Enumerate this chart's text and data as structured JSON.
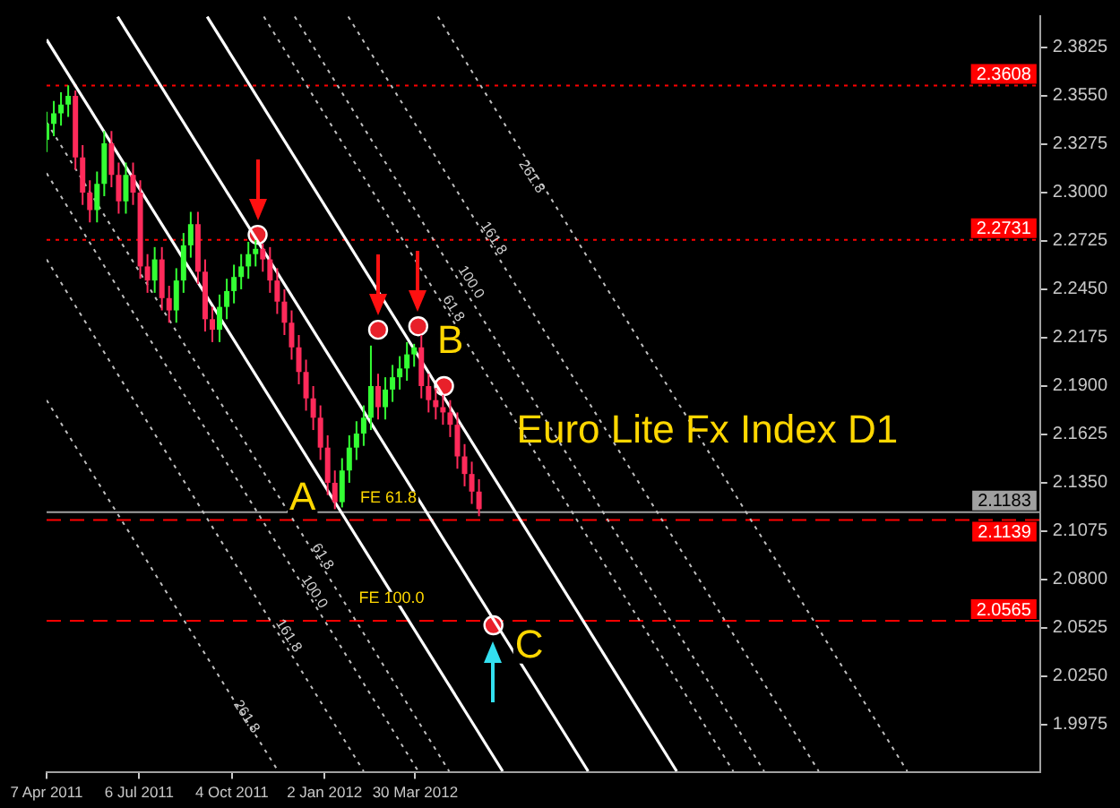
{
  "chart_data": {
    "type": "candlestick",
    "title": "Euro Lite Fx Index D1",
    "xlim": [
      "2011-04-07",
      "2013-11-27"
    ],
    "xticks": [
      {
        "value": "2011-04-07",
        "label": "7 Apr 2011"
      },
      {
        "value": "2011-07-06",
        "label": "6 Jul 2011"
      },
      {
        "value": "2011-10-04",
        "label": "4 Oct 2011"
      },
      {
        "value": "2012-01-02",
        "label": "2 Jan 2012"
      },
      {
        "value": "2012-03-30",
        "label": "30 Mar 2012"
      }
    ],
    "ylim": [
      1.9707,
      2.4003
    ],
    "yticks": [
      2.3825,
      {
        "value": 2.355,
        "label": "2.3550"
      },
      2.3275,
      {
        "value": 2.3,
        "label": "2.3000"
      },
      2.2725,
      {
        "value": 2.245,
        "label": "2.2450"
      },
      2.2175,
      {
        "value": 2.19,
        "label": "2.1900"
      },
      2.1625,
      {
        "value": 2.135,
        "label": "2.1350"
      },
      2.1075,
      {
        "value": 2.08,
        "label": "2.0800"
      },
      2.0525,
      {
        "value": 2.025,
        "label": "2.0250"
      },
      1.9975
    ],
    "ref_lines": [
      {
        "axis": "y",
        "value": 2.3608,
        "label": "2.3608",
        "color": "#ff0000",
        "line_style": "dotted"
      },
      {
        "axis": "y",
        "value": 2.2731,
        "label": "2.2731",
        "color": "#ff0000",
        "line_style": "dotted"
      },
      {
        "axis": "y",
        "value": 2.1183,
        "label": "2.1183",
        "color": "#a0a0a0",
        "line_style": "solid"
      },
      {
        "axis": "y",
        "value": 2.1139,
        "label": "2.1139",
        "color": "#ff0000",
        "line_style": "dashed"
      },
      {
        "axis": "y",
        "value": 2.0565,
        "label": "2.0565",
        "color": "#ff0000",
        "line_style": "dashed"
      }
    ],
    "annotations": [
      {
        "text": "A",
        "x": "2012-01-12",
        "y": 2.12
      },
      {
        "text": "B",
        "x": "2012-04-02",
        "y": 2.213
      },
      {
        "text": "C",
        "x": "2012-06-14",
        "y": 2.054
      },
      {
        "text": "FE 61.8",
        "x": "2012-03-04",
        "y": 2.12
      },
      {
        "text": "FE 100.0",
        "x": "2012-03-07",
        "y": 2.063
      },
      {
        "text": "261.8",
        "x": "2012-07-21",
        "y": 2.309
      },
      {
        "text": "161.8",
        "x": "2012-06-14",
        "y": 2.274
      },
      {
        "text": "100.0",
        "x": "2012-05-23",
        "y": 2.249
      },
      {
        "text": "61.8",
        "x": "2012-05-06",
        "y": 2.234
      },
      {
        "text": "61.8",
        "x": "2011-12-31",
        "y": 2.093
      },
      {
        "text": "100.0",
        "x": "2011-12-23",
        "y": 2.073
      },
      {
        "text": "161.8",
        "x": "2011-11-28",
        "y": 2.048
      },
      {
        "text": "261.8",
        "x": "2011-10-18",
        "y": 2.002
      }
    ],
    "series": [
      {
        "type": "line",
        "x": [
          "2011-04-07",
          "2012-06-23"
        ],
        "values": [
          2.387,
          1.971
        ],
        "color": "#ffffff",
        "line_style": "solid"
      },
      {
        "type": "line",
        "x": [
          "2011-06-15",
          "2012-09-14"
        ],
        "values": [
          2.4,
          1.971
        ],
        "color": "#ffffff",
        "line_style": "solid"
      },
      {
        "type": "line",
        "x": [
          "2011-09-10",
          "2012-12-09"
        ],
        "values": [
          2.4,
          1.971
        ],
        "color": "#ffffff",
        "line_style": "solid"
      },
      {
        "type": "line",
        "x": [
          "2011-11-04",
          "2013-02-02"
        ],
        "values": [
          2.4,
          1.971
        ],
        "color": "#c0c0c0",
        "line_style": "dotted"
      },
      {
        "type": "line",
        "x": [
          "2011-12-04",
          "2013-03-04"
        ],
        "values": [
          2.4,
          1.971
        ],
        "color": "#c0c0c0",
        "line_style": "dotted"
      },
      {
        "type": "line",
        "x": [
          "2012-01-25",
          "2013-04-26"
        ],
        "values": [
          2.4,
          1.971
        ],
        "color": "#c0c0c0",
        "line_style": "dotted"
      },
      {
        "type": "line",
        "x": [
          "2012-04-21",
          "2013-07-21"
        ],
        "values": [
          2.4,
          1.971
        ],
        "color": "#c0c0c0",
        "line_style": "dotted"
      },
      {
        "type": "line",
        "x": [
          "2011-04-07",
          "2011-11-18"
        ],
        "values": [
          2.182,
          1.971
        ],
        "color": "#c0c0c0",
        "line_style": "dotted"
      },
      {
        "type": "line",
        "x": [
          "2011-04-07",
          "2012-02-09"
        ],
        "values": [
          2.262,
          1.971
        ],
        "color": "#c0c0c0",
        "line_style": "dotted"
      },
      {
        "type": "line",
        "x": [
          "2011-04-07",
          "2012-04-02"
        ],
        "values": [
          2.311,
          1.971
        ],
        "color": "#c0c0c0",
        "line_style": "dotted"
      },
      {
        "type": "line",
        "x": [
          "2011-04-07",
          "2012-05-02"
        ],
        "values": [
          2.34,
          1.971
        ],
        "color": "#c0c0c0",
        "line_style": "dotted"
      },
      {
        "x": [
          "2011-04-07",
          "2011-04-14",
          "2011-04-21",
          "2011-04-28",
          "2011-05-05",
          "2011-05-12",
          "2011-05-19",
          "2011-05-26",
          "2011-06-02",
          "2011-06-09",
          "2011-06-16",
          "2011-06-23",
          "2011-06-30",
          "2011-07-07",
          "2011-07-14",
          "2011-07-21",
          "2011-07-28",
          "2011-08-04",
          "2011-08-11",
          "2011-08-18",
          "2011-08-25",
          "2011-09-01",
          "2011-09-08",
          "2011-09-15",
          "2011-09-22",
          "2011-09-29",
          "2011-10-06",
          "2011-10-13",
          "2011-10-20",
          "2011-10-27",
          "2011-11-03",
          "2011-11-10",
          "2011-11-17",
          "2011-11-24",
          "2011-12-01",
          "2011-12-08",
          "2011-12-15",
          "2011-12-22",
          "2011-12-29",
          "2012-01-05",
          "2012-01-12",
          "2012-01-19",
          "2012-01-26",
          "2012-02-02",
          "2012-02-09",
          "2012-02-16",
          "2012-02-23",
          "2012-03-01",
          "2012-03-08",
          "2012-03-15",
          "2012-03-22",
          "2012-03-29",
          "2012-04-05",
          "2012-04-12",
          "2012-04-19",
          "2012-04-26",
          "2012-05-03",
          "2012-05-10",
          "2012-05-17",
          "2012-05-24",
          "2012-05-31"
        ],
        "ohlc": [
          [
            2.33,
            2.346,
            2.323,
            2.339
          ],
          [
            2.339,
            2.352,
            2.332,
            2.345
          ],
          [
            2.345,
            2.357,
            2.338,
            2.35
          ],
          [
            2.35,
            2.361,
            2.343,
            2.355
          ],
          [
            2.355,
            2.358,
            2.313,
            2.32
          ],
          [
            2.32,
            2.327,
            2.293,
            2.3
          ],
          [
            2.3,
            2.307,
            2.283,
            2.29
          ],
          [
            2.29,
            2.312,
            2.283,
            2.305
          ],
          [
            2.305,
            2.335,
            2.298,
            2.328
          ],
          [
            2.328,
            2.335,
            2.303,
            2.31
          ],
          [
            2.31,
            2.317,
            2.288,
            2.295
          ],
          [
            2.295,
            2.317,
            2.288,
            2.31
          ],
          [
            2.31,
            2.317,
            2.293,
            2.3
          ],
          [
            2.3,
            2.307,
            2.251,
            2.258
          ],
          [
            2.258,
            2.265,
            2.243,
            2.25
          ],
          [
            2.25,
            2.269,
            2.243,
            2.262
          ],
          [
            2.262,
            2.269,
            2.233,
            2.24
          ],
          [
            2.24,
            2.247,
            2.226,
            2.233
          ],
          [
            2.233,
            2.257,
            2.226,
            2.25
          ],
          [
            2.25,
            2.277,
            2.243,
            2.27
          ],
          [
            2.27,
            2.289,
            2.263,
            2.282
          ],
          [
            2.282,
            2.289,
            2.248,
            2.255
          ],
          [
            2.255,
            2.262,
            2.221,
            2.228
          ],
          [
            2.228,
            2.235,
            2.215,
            2.222
          ],
          [
            2.222,
            2.242,
            2.215,
            2.235
          ],
          [
            2.235,
            2.251,
            2.228,
            2.244
          ],
          [
            2.244,
            2.259,
            2.237,
            2.252
          ],
          [
            2.252,
            2.265,
            2.245,
            2.258
          ],
          [
            2.258,
            2.272,
            2.251,
            2.265
          ],
          [
            2.265,
            2.273,
            2.258,
            2.268
          ],
          [
            2.268,
            2.271,
            2.255,
            2.262
          ],
          [
            2.262,
            2.269,
            2.243,
            2.25
          ],
          [
            2.25,
            2.257,
            2.231,
            2.238
          ],
          [
            2.238,
            2.245,
            2.219,
            2.226
          ],
          [
            2.226,
            2.233,
            2.205,
            2.212
          ],
          [
            2.212,
            2.219,
            2.191,
            2.198
          ],
          [
            2.198,
            2.205,
            2.176,
            2.183
          ],
          [
            2.183,
            2.19,
            2.165,
            2.172
          ],
          [
            2.172,
            2.179,
            2.148,
            2.155
          ],
          [
            2.155,
            2.162,
            2.128,
            2.135
          ],
          [
            2.135,
            2.142,
            2.12,
            2.124
          ],
          [
            2.124,
            2.149,
            2.121,
            2.142
          ],
          [
            2.142,
            2.162,
            2.135,
            2.155
          ],
          [
            2.155,
            2.17,
            2.148,
            2.163
          ],
          [
            2.163,
            2.179,
            2.156,
            2.172
          ],
          [
            2.172,
            2.213,
            2.165,
            2.19
          ],
          [
            2.19,
            2.197,
            2.171,
            2.178
          ],
          [
            2.178,
            2.195,
            2.171,
            2.188
          ],
          [
            2.188,
            2.202,
            2.181,
            2.195
          ],
          [
            2.195,
            2.207,
            2.188,
            2.2
          ],
          [
            2.2,
            2.215,
            2.193,
            2.208
          ],
          [
            2.208,
            2.214,
            2.201,
            2.212
          ],
          [
            2.212,
            2.219,
            2.183,
            2.19
          ],
          [
            2.19,
            2.197,
            2.175,
            2.182
          ],
          [
            2.182,
            2.189,
            2.171,
            2.178
          ],
          [
            2.178,
            2.185,
            2.168,
            2.175
          ],
          [
            2.175,
            2.182,
            2.161,
            2.168
          ],
          [
            2.168,
            2.175,
            2.143,
            2.15
          ],
          [
            2.15,
            2.157,
            2.133,
            2.14
          ],
          [
            2.14,
            2.147,
            2.123,
            2.13
          ],
          [
            2.13,
            2.137,
            2.116,
            2.12
          ]
        ],
        "colors": [
          "#33ff33",
          "#33ff33",
          "#33ff33",
          "#33ff33",
          "#ff2a5a",
          "#ff2a5a",
          "#ff2a5a",
          "#33ff33",
          "#33ff33",
          "#ff2a5a",
          "#ff2a5a",
          "#33ff33",
          "#ff2a5a",
          "#ff2a5a",
          "#ff2a5a",
          "#33ff33",
          "#ff2a5a",
          "#ff2a5a",
          "#33ff33",
          "#33ff33",
          "#33ff33",
          "#ff2a5a",
          "#ff2a5a",
          "#ff2a5a",
          "#33ff33",
          "#33ff33",
          "#33ff33",
          "#33ff33",
          "#33ff33",
          "#33ff33",
          "#ff2a5a",
          "#ff2a5a",
          "#ff2a5a",
          "#ff2a5a",
          "#ff2a5a",
          "#ff2a5a",
          "#ff2a5a",
          "#ff2a5a",
          "#ff2a5a",
          "#ff2a5a",
          "#ff2a5a",
          "#33ff33",
          "#33ff33",
          "#33ff33",
          "#33ff33",
          "#33ff33",
          "#ff2a5a",
          "#33ff33",
          "#33ff33",
          "#33ff33",
          "#33ff33",
          "#33ff33",
          "#ff2a5a",
          "#ff2a5a",
          "#ff2a5a",
          "#ff2a5a",
          "#ff2a5a",
          "#ff2a5a",
          "#ff2a5a",
          "#ff2a5a",
          "#ff2a5a"
        ]
      },
      {
        "type": "scatter",
        "x": [
          "2011-10-29",
          "2012-02-23",
          "2012-04-02",
          "2012-04-27",
          "2012-06-14"
        ],
        "values": [
          2.276,
          2.222,
          2.224,
          2.19,
          2.054
        ],
        "color": "#e8202a",
        "marker": "circle"
      }
    ]
  }
}
